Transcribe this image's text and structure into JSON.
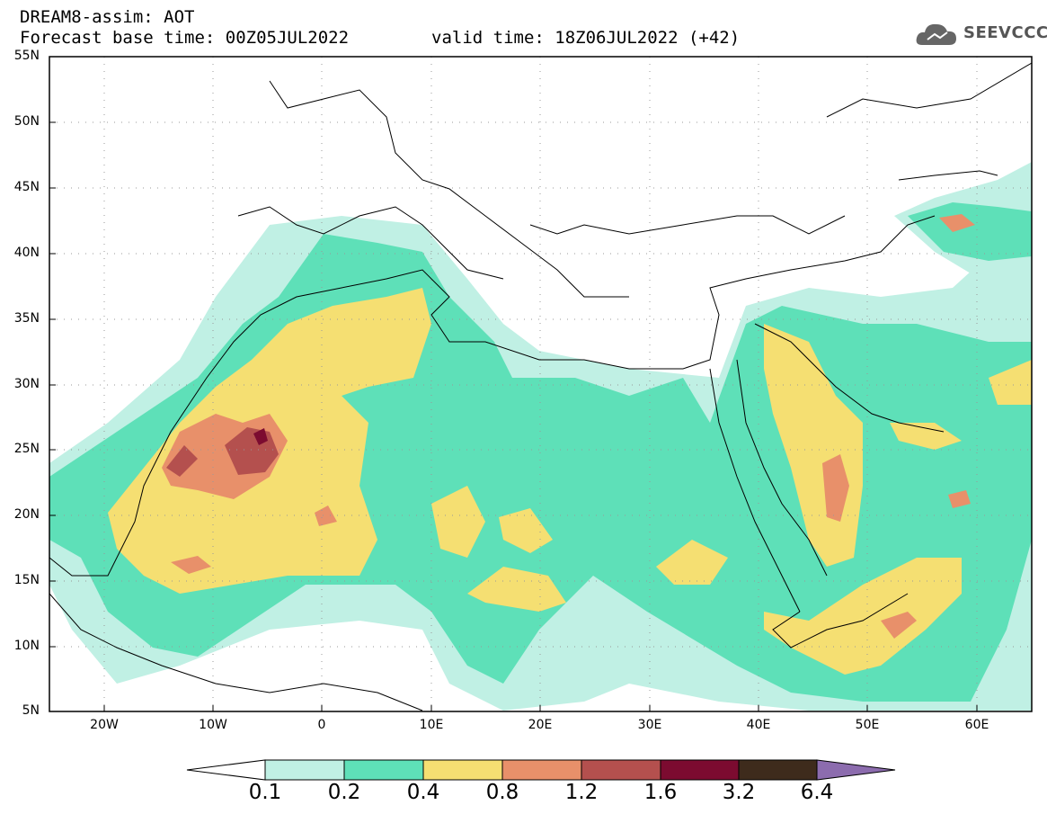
{
  "header": {
    "title": "DREAM8-assim: AOT",
    "base_time": "Forecast base time: 00Z05JUL2022",
    "valid_time": "valid time: 18Z06JUL2022 (+42)"
  },
  "logo": {
    "text": "SEEVCCC",
    "icon": "cloud-icon"
  },
  "map": {
    "lat_labels": [
      "55N",
      "50N",
      "45N",
      "40N",
      "35N",
      "30N",
      "25N",
      "20N",
      "15N",
      "10N",
      "5N"
    ],
    "lon_labels": [
      "20W",
      "10W",
      "0",
      "10E",
      "20E",
      "30E",
      "40E",
      "50E",
      "60E"
    ],
    "lat_range": [
      5,
      55
    ],
    "lon_range": [
      -25,
      65
    ],
    "grid": "dotted"
  },
  "colorbar": {
    "labels": [
      "0.1",
      "0.2",
      "0.4",
      "0.8",
      "1.2",
      "1.6",
      "3.2",
      "6.4"
    ],
    "colors": [
      "#c0f0e4",
      "#5ee0b8",
      "#f5df72",
      "#e8906a",
      "#b4504e",
      "#7c0b30",
      "#3e2b1c",
      "#8c6cae"
    ]
  }
}
